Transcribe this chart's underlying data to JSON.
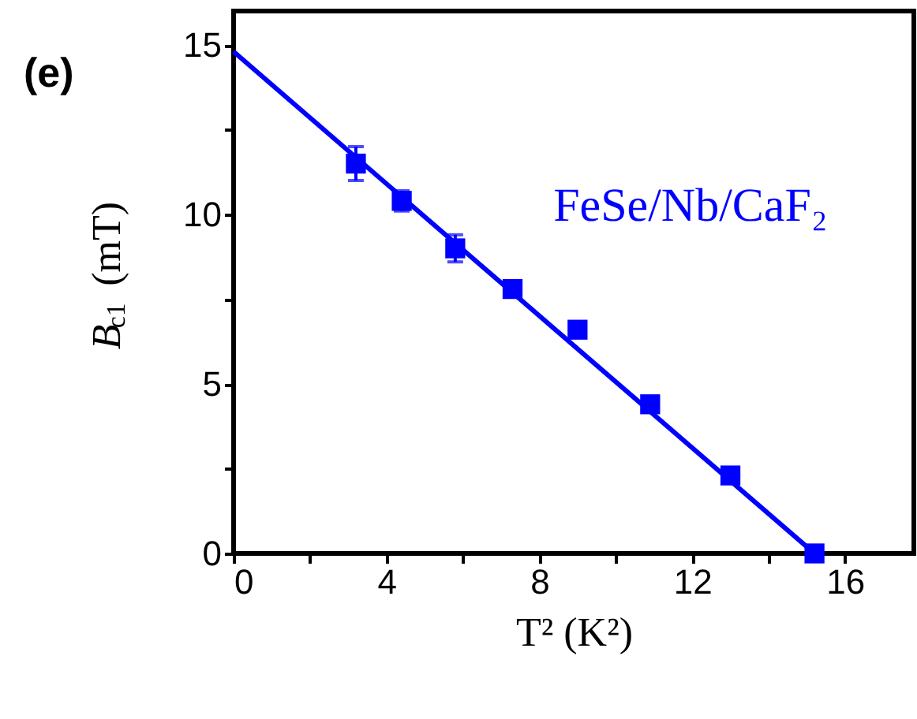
{
  "chart_data": {
    "type": "scatter",
    "annotations": [
      "(e)"
    ],
    "xlabel": "T² (K²)",
    "ylabel": "B$_{c1}$ (mT)",
    "xlim": [
      0,
      17.8
    ],
    "ylim": [
      0,
      16
    ],
    "xticks": [
      0,
      {
        "value": 2,
        "label": null
      },
      4,
      {
        "value": 6,
        "label": null
      },
      8,
      {
        "value": 10,
        "label": null
      },
      12,
      {
        "value": 14,
        "label": null
      },
      16
    ],
    "yticks": [
      0,
      {
        "value": 2.5,
        "label": null
      },
      5,
      {
        "value": 7.5,
        "label": null
      },
      10,
      {
        "value": 12.5,
        "label": null
      },
      15
    ],
    "grid": false,
    "legend": false,
    "marker": "square",
    "series": [
      {
        "name": "FeSe/Nb/CaF₂",
        "color": "#0000ff",
        "x": [
          3.2,
          4.4,
          5.8,
          7.3,
          9.0,
          10.9,
          13.0,
          15.2
        ],
        "values": [
          11.5,
          10.4,
          9.0,
          7.8,
          6.6,
          4.4,
          2.3,
          0.0
        ],
        "errors": [
          0.5,
          0.3,
          0.4,
          null,
          null,
          null,
          null,
          null
        ]
      },
      {
        "color": "#0000ff",
        "type": "line",
        "line_style": "solid",
        "marker": "none",
        "x": [
          0,
          15.2
        ],
        "values": [
          14.8,
          0.0
        ]
      }
    ]
  }
}
